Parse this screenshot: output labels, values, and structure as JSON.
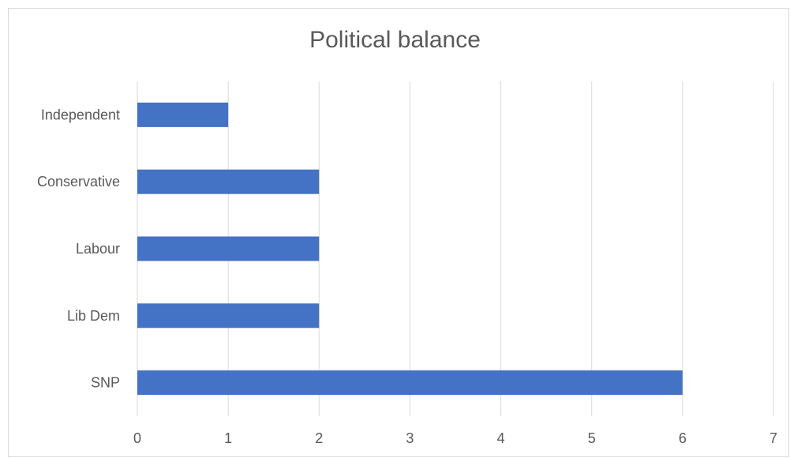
{
  "chart_data": {
    "type": "bar",
    "orientation": "horizontal",
    "title": "Political balance",
    "xlabel": "",
    "ylabel": "",
    "categories": [
      "SNP",
      "Lib Dem",
      "Labour",
      "Conservative",
      "Independent"
    ],
    "values": [
      6,
      2,
      2,
      2,
      1
    ],
    "xlim": [
      0,
      7
    ],
    "x_ticks": [
      "0",
      "1",
      "2",
      "3",
      "4",
      "5",
      "6",
      "7"
    ],
    "grid": "vertical",
    "legend": "none",
    "colors": {
      "bar": "#4472c4",
      "grid": "#d9d9d9",
      "text": "#595959",
      "frame": "#d9d9d9"
    }
  }
}
